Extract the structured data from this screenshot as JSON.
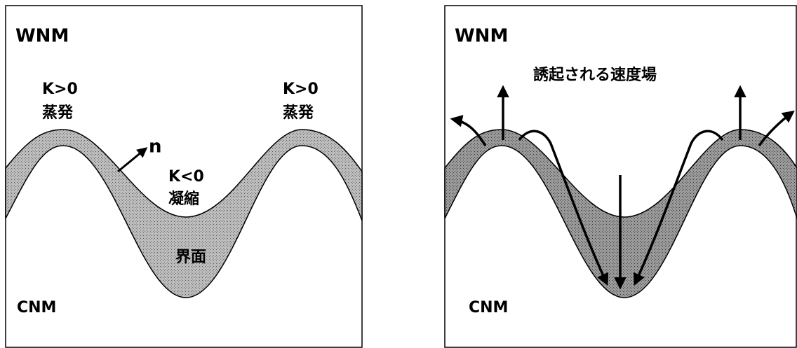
{
  "left_panel": {
    "top_label": "WNM",
    "bottom_label": "CNM",
    "crest_left": {
      "curvature": "K>0",
      "process": "蒸発"
    },
    "crest_right": {
      "curvature": "K>0",
      "process": "蒸発"
    },
    "normal": "n",
    "trough": {
      "curvature": "K<0",
      "process": "凝縮"
    },
    "interface": "界面"
  },
  "right_panel": {
    "top_label": "WNM",
    "bottom_label": "CNM",
    "velocity_field": "誘起される速度場"
  }
}
